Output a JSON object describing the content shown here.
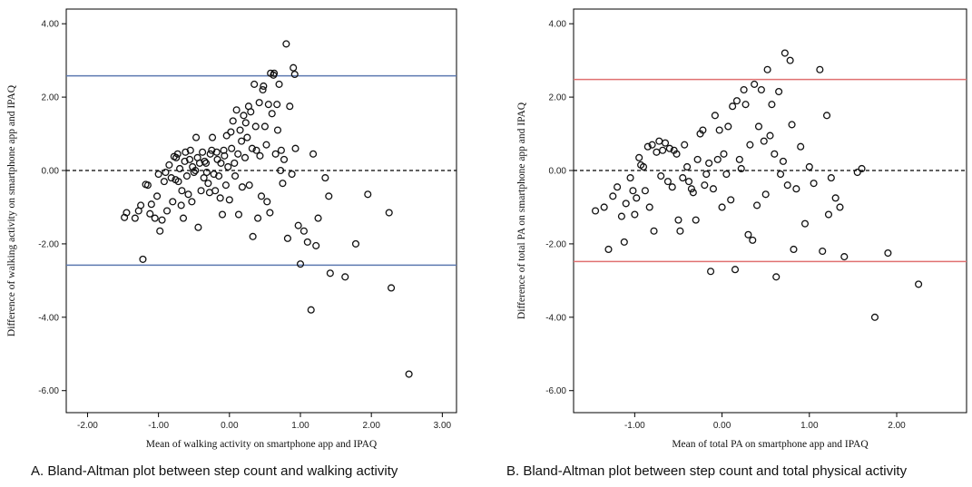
{
  "chart_data": [
    {
      "type": "scatter",
      "caption": "A. Bland-Altman plot between step count and walking activity",
      "xlabel": "Mean of walking activity on smartphone app and IPAQ",
      "ylabel": "Difference of walking activity on smartphone app and IPAQ",
      "xlim": [
        -2.3,
        3.2
      ],
      "ylim": [
        -6.6,
        4.4
      ],
      "xticks": [
        -2.0,
        -1.0,
        0.0,
        1.0,
        2.0,
        3.0
      ],
      "xtick_labels": [
        "-2.00",
        "-1.00",
        "0.00",
        "1.00",
        "2.00",
        "3.00"
      ],
      "yticks": [
        -6.0,
        -4.0,
        -2.0,
        0.0,
        2.0,
        4.0
      ],
      "ytick_labels": [
        "-6.00",
        "-4.00",
        "-2.00",
        "0.00",
        "2.00",
        "4.00"
      ],
      "mean_line": 0.0,
      "limits_of_agreement": [
        2.58,
        -2.58
      ],
      "loa_color": "#5b78b0",
      "grid": false,
      "points": [
        [
          -1.48,
          -1.28
        ],
        [
          -1.45,
          -1.15
        ],
        [
          -1.33,
          -1.3
        ],
        [
          -1.28,
          -1.1
        ],
        [
          -1.25,
          -0.95
        ],
        [
          -1.22,
          -2.42
        ],
        [
          -1.18,
          -0.38
        ],
        [
          -1.15,
          -0.4
        ],
        [
          -1.12,
          -1.18
        ],
        [
          -1.1,
          -0.92
        ],
        [
          -1.05,
          -1.3
        ],
        [
          -1.02,
          -0.7
        ],
        [
          -1.0,
          -0.1
        ],
        [
          -0.98,
          -1.65
        ],
        [
          -0.95,
          -1.35
        ],
        [
          -0.92,
          -0.3
        ],
        [
          -0.9,
          -0.05
        ],
        [
          -0.88,
          -1.1
        ],
        [
          -0.85,
          0.15
        ],
        [
          -0.82,
          -0.2
        ],
        [
          -0.8,
          -0.85
        ],
        [
          -0.78,
          0.38
        ],
        [
          -0.76,
          -0.25
        ],
        [
          -0.75,
          0.35
        ],
        [
          -0.73,
          0.45
        ],
        [
          -0.72,
          -0.3
        ],
        [
          -0.7,
          0.05
        ],
        [
          -0.68,
          -0.95
        ],
        [
          -0.67,
          -0.55
        ],
        [
          -0.65,
          -1.3
        ],
        [
          -0.63,
          0.25
        ],
        [
          -0.62,
          0.5
        ],
        [
          -0.6,
          -0.15
        ],
        [
          -0.58,
          -0.65
        ],
        [
          -0.56,
          0.3
        ],
        [
          -0.55,
          0.55
        ],
        [
          -0.53,
          -0.85
        ],
        [
          -0.52,
          0.1
        ],
        [
          -0.5,
          -0.05
        ],
        [
          -0.48,
          0.0
        ],
        [
          -0.47,
          0.9
        ],
        [
          -0.45,
          0.35
        ],
        [
          -0.44,
          -1.55
        ],
        [
          -0.42,
          0.2
        ],
        [
          -0.4,
          -0.55
        ],
        [
          -0.38,
          0.5
        ],
        [
          -0.36,
          -0.2
        ],
        [
          -0.35,
          0.25
        ],
        [
          -0.33,
          0.2
        ],
        [
          -0.32,
          -0.05
        ],
        [
          -0.3,
          -0.35
        ],
        [
          -0.28,
          -0.6
        ],
        [
          -0.27,
          0.45
        ],
        [
          -0.25,
          0.55
        ],
        [
          -0.24,
          0.9
        ],
        [
          -0.22,
          -0.1
        ],
        [
          -0.2,
          -0.55
        ],
        [
          -0.18,
          0.5
        ],
        [
          -0.17,
          0.3
        ],
        [
          -0.15,
          -0.15
        ],
        [
          -0.13,
          -0.75
        ],
        [
          -0.12,
          0.2
        ],
        [
          -0.1,
          -1.2
        ],
        [
          -0.08,
          0.55
        ],
        [
          -0.07,
          0.4
        ],
        [
          -0.05,
          -0.4
        ],
        [
          -0.04,
          0.95
        ],
        [
          -0.02,
          0.1
        ],
        [
          0.0,
          -0.8
        ],
        [
          0.02,
          1.05
        ],
        [
          0.03,
          0.6
        ],
        [
          0.05,
          1.35
        ],
        [
          0.07,
          0.2
        ],
        [
          0.08,
          -0.15
        ],
        [
          0.1,
          1.65
        ],
        [
          0.12,
          0.45
        ],
        [
          0.13,
          -1.2
        ],
        [
          0.15,
          1.1
        ],
        [
          0.17,
          0.8
        ],
        [
          0.18,
          -0.45
        ],
        [
          0.2,
          1.5
        ],
        [
          0.22,
          0.35
        ],
        [
          0.23,
          1.3
        ],
        [
          0.25,
          0.9
        ],
        [
          0.27,
          1.75
        ],
        [
          0.28,
          -0.4
        ],
        [
          0.3,
          1.6
        ],
        [
          0.32,
          0.6
        ],
        [
          0.33,
          -1.8
        ],
        [
          0.35,
          2.35
        ],
        [
          0.37,
          1.2
        ],
        [
          0.38,
          0.55
        ],
        [
          0.4,
          -1.3
        ],
        [
          0.42,
          1.85
        ],
        [
          0.43,
          0.4
        ],
        [
          0.45,
          -0.7
        ],
        [
          0.47,
          2.2
        ],
        [
          0.48,
          2.3
        ],
        [
          0.5,
          1.2
        ],
        [
          0.52,
          0.7
        ],
        [
          0.53,
          -0.85
        ],
        [
          0.55,
          1.8
        ],
        [
          0.57,
          -1.15
        ],
        [
          0.58,
          2.65
        ],
        [
          0.6,
          1.55
        ],
        [
          0.62,
          2.6
        ],
        [
          0.63,
          2.65
        ],
        [
          0.65,
          0.45
        ],
        [
          0.67,
          1.8
        ],
        [
          0.68,
          1.1
        ],
        [
          0.7,
          2.35
        ],
        [
          0.72,
          0.0
        ],
        [
          0.73,
          0.55
        ],
        [
          0.75,
          -0.35
        ],
        [
          0.77,
          0.3
        ],
        [
          0.8,
          3.45
        ],
        [
          0.82,
          -1.85
        ],
        [
          0.85,
          1.75
        ],
        [
          0.88,
          -0.1
        ],
        [
          0.9,
          2.8
        ],
        [
          0.92,
          2.62
        ],
        [
          0.93,
          0.6
        ],
        [
          0.97,
          -1.5
        ],
        [
          1.0,
          -2.55
        ],
        [
          1.05,
          -1.65
        ],
        [
          1.1,
          -1.95
        ],
        [
          1.15,
          -3.8
        ],
        [
          1.18,
          0.45
        ],
        [
          1.22,
          -2.05
        ],
        [
          1.25,
          -1.3
        ],
        [
          1.35,
          -0.2
        ],
        [
          1.4,
          -0.7
        ],
        [
          1.42,
          -2.8
        ],
        [
          1.63,
          -2.9
        ],
        [
          1.78,
          -2.0
        ],
        [
          1.95,
          -0.65
        ],
        [
          2.25,
          -1.15
        ],
        [
          2.28,
          -3.2
        ],
        [
          2.53,
          -5.55
        ]
      ]
    },
    {
      "type": "scatter",
      "caption": "B. Bland-Altman plot between step count and total physical activity",
      "xlabel": "Mean of total PA on smartphone app and IPAQ",
      "ylabel": "Difference of total PA on smartphone app and IPAQ",
      "xlim": [
        -1.7,
        2.8
      ],
      "ylim": [
        -6.6,
        4.4
      ],
      "xticks": [
        -1.0,
        0.0,
        1.0,
        2.0
      ],
      "xtick_labels": [
        "-1.00",
        "0.00",
        "1.00",
        "2.00"
      ],
      "yticks": [
        -6.0,
        -4.0,
        -2.0,
        0.0,
        2.0,
        4.0
      ],
      "ytick_labels": [
        "-6.00",
        "-4.00",
        "-2.00",
        "0.00",
        "2.00",
        "4.00"
      ],
      "mean_line": 0.0,
      "limits_of_agreement": [
        2.48,
        -2.48
      ],
      "loa_color": "#e07070",
      "grid": false,
      "points": [
        [
          -1.45,
          -1.1
        ],
        [
          -1.35,
          -1.0
        ],
        [
          -1.3,
          -2.15
        ],
        [
          -1.25,
          -0.7
        ],
        [
          -1.2,
          -0.45
        ],
        [
          -1.15,
          -1.25
        ],
        [
          -1.12,
          -1.95
        ],
        [
          -1.1,
          -0.9
        ],
        [
          -1.05,
          -0.2
        ],
        [
          -1.02,
          -0.55
        ],
        [
          -1.0,
          -1.2
        ],
        [
          -0.98,
          -0.75
        ],
        [
          -0.95,
          0.35
        ],
        [
          -0.93,
          0.15
        ],
        [
          -0.9,
          0.1
        ],
        [
          -0.88,
          -0.55
        ],
        [
          -0.85,
          0.65
        ],
        [
          -0.83,
          -1.0
        ],
        [
          -0.8,
          0.7
        ],
        [
          -0.78,
          -1.65
        ],
        [
          -0.75,
          0.5
        ],
        [
          -0.72,
          0.8
        ],
        [
          -0.7,
          -0.15
        ],
        [
          -0.68,
          0.55
        ],
        [
          -0.65,
          0.75
        ],
        [
          -0.62,
          -0.3
        ],
        [
          -0.6,
          0.6
        ],
        [
          -0.57,
          -0.45
        ],
        [
          -0.55,
          0.55
        ],
        [
          -0.52,
          0.45
        ],
        [
          -0.5,
          -1.35
        ],
        [
          -0.48,
          -1.65
        ],
        [
          -0.45,
          -0.2
        ],
        [
          -0.43,
          0.7
        ],
        [
          -0.4,
          0.1
        ],
        [
          -0.38,
          -0.3
        ],
        [
          -0.35,
          -0.5
        ],
        [
          -0.33,
          -0.6
        ],
        [
          -0.3,
          -1.35
        ],
        [
          -0.28,
          0.3
        ],
        [
          -0.25,
          1.0
        ],
        [
          -0.22,
          1.1
        ],
        [
          -0.2,
          -0.4
        ],
        [
          -0.18,
          -0.1
        ],
        [
          -0.15,
          0.2
        ],
        [
          -0.13,
          -2.75
        ],
        [
          -0.1,
          -0.5
        ],
        [
          -0.08,
          1.5
        ],
        [
          -0.05,
          0.3
        ],
        [
          -0.03,
          1.1
        ],
        [
          0.0,
          -1.0
        ],
        [
          0.02,
          0.45
        ],
        [
          0.05,
          -0.1
        ],
        [
          0.07,
          1.2
        ],
        [
          0.1,
          -0.8
        ],
        [
          0.12,
          1.75
        ],
        [
          0.15,
          -2.7
        ],
        [
          0.17,
          1.9
        ],
        [
          0.2,
          0.3
        ],
        [
          0.22,
          0.05
        ],
        [
          0.25,
          2.2
        ],
        [
          0.27,
          1.8
        ],
        [
          0.3,
          -1.75
        ],
        [
          0.32,
          0.7
        ],
        [
          0.35,
          -1.9
        ],
        [
          0.37,
          2.35
        ],
        [
          0.4,
          -0.95
        ],
        [
          0.42,
          1.2
        ],
        [
          0.45,
          2.2
        ],
        [
          0.48,
          0.8
        ],
        [
          0.5,
          -0.65
        ],
        [
          0.52,
          2.75
        ],
        [
          0.55,
          0.95
        ],
        [
          0.57,
          1.8
        ],
        [
          0.6,
          0.45
        ],
        [
          0.62,
          -2.9
        ],
        [
          0.65,
          2.15
        ],
        [
          0.67,
          -0.1
        ],
        [
          0.7,
          0.25
        ],
        [
          0.72,
          3.2
        ],
        [
          0.75,
          -0.4
        ],
        [
          0.78,
          3.0
        ],
        [
          0.8,
          1.25
        ],
        [
          0.82,
          -2.15
        ],
        [
          0.85,
          -0.5
        ],
        [
          0.9,
          0.65
        ],
        [
          0.95,
          -1.45
        ],
        [
          1.0,
          0.1
        ],
        [
          1.05,
          -0.35
        ],
        [
          1.12,
          2.75
        ],
        [
          1.15,
          -2.2
        ],
        [
          1.2,
          1.5
        ],
        [
          1.22,
          -1.2
        ],
        [
          1.25,
          -0.2
        ],
        [
          1.3,
          -0.75
        ],
        [
          1.35,
          -1.0
        ],
        [
          1.4,
          -2.35
        ],
        [
          1.55,
          -0.05
        ],
        [
          1.6,
          0.05
        ],
        [
          1.75,
          -4.0
        ],
        [
          1.9,
          -2.25
        ],
        [
          2.25,
          -3.1
        ]
      ]
    }
  ]
}
